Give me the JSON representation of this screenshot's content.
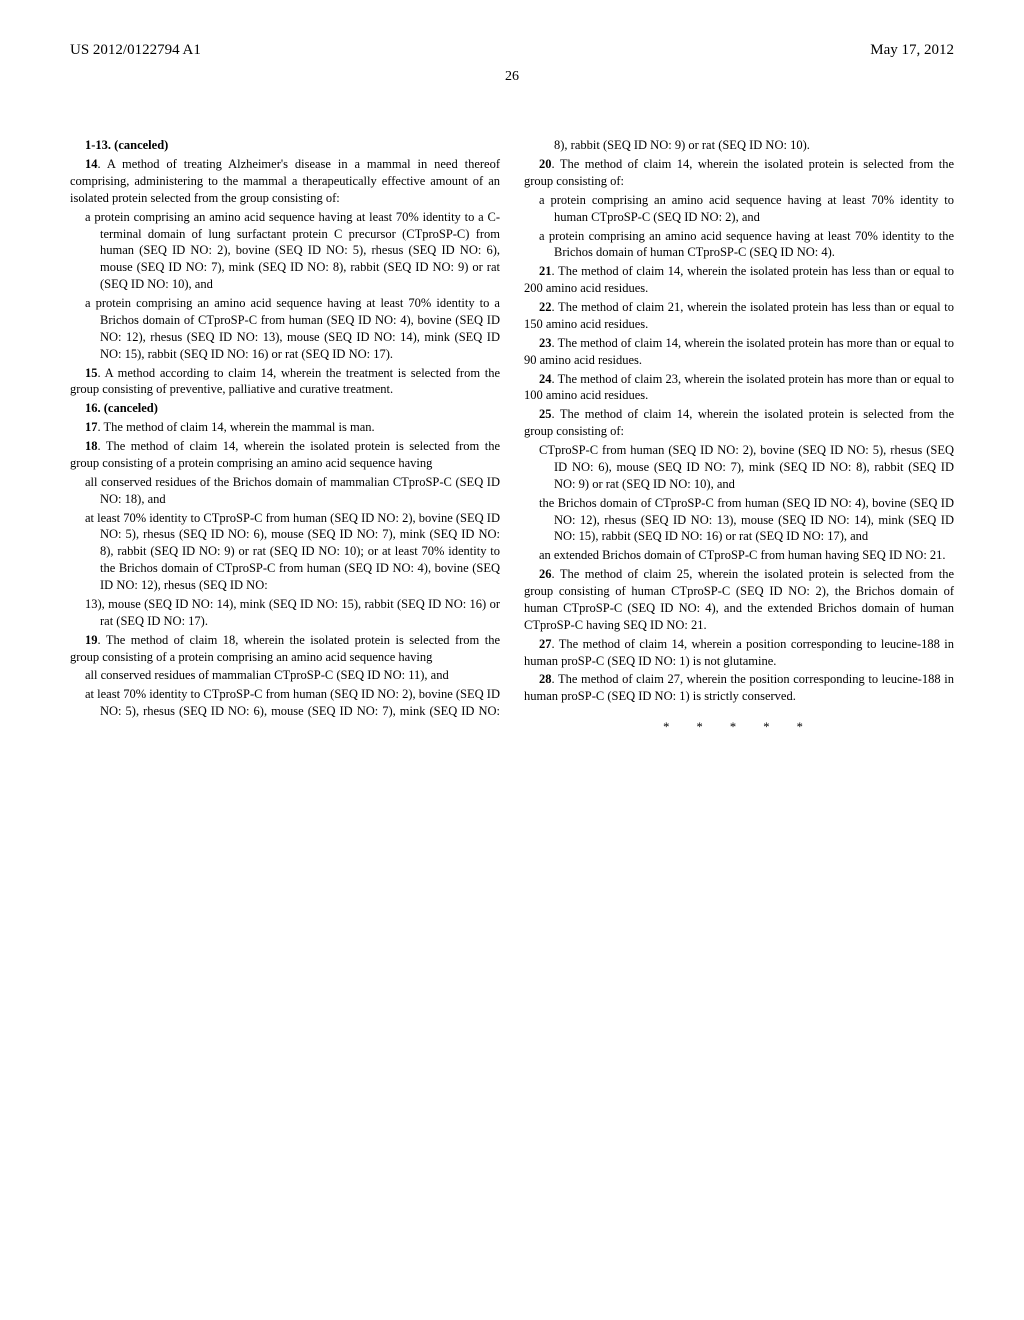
{
  "header": {
    "publication_number": "US 2012/0122794 A1",
    "publication_date": "May 17, 2012"
  },
  "page_number": "26",
  "claims": {
    "c1_13": "1-13. (canceled)",
    "c14": {
      "num": "14",
      "lead": ". A method of treating Alzheimer's disease in a mammal in need thereof comprising, administering to the mammal a therapeutically effective amount of an isolated protein selected from the group consisting of:",
      "sub1": "a protein comprising an amino acid sequence having at least 70% identity to a C-terminal domain of lung surfactant protein C precursor (CTproSP-C) from human (SEQ ID NO: 2), bovine (SEQ ID NO: 5), rhesus (SEQ ID NO: 6), mouse (SEQ ID NO: 7), mink (SEQ ID NO: 8), rabbit (SEQ ID NO: 9) or rat (SEQ ID NO: 10), and",
      "sub2": "a protein comprising an amino acid sequence having at least 70% identity to a Brichos domain of CTproSP-C from human (SEQ ID NO: 4), bovine (SEQ ID NO: 12), rhesus (SEQ ID NO: 13), mouse (SEQ ID NO: 14), mink (SEQ ID NO: 15), rabbit (SEQ ID NO: 16) or rat (SEQ ID NO: 17)."
    },
    "c15": {
      "num": "15",
      "text": ". A method according to claim 14, wherein the treatment is selected from the group consisting of preventive, palliative and curative treatment."
    },
    "c16": "16. (canceled)",
    "c17": {
      "num": "17",
      "text": ". The method of claim 14, wherein the mammal is man."
    },
    "c18": {
      "num": "18",
      "lead": ". The method of claim 14, wherein the isolated protein is selected from the group consisting of a protein comprising an amino acid sequence having",
      "sub1": "all conserved residues of the Brichos domain of mammalian CTproSP-C (SEQ ID NO: 18), and",
      "sub2": "at least 70% identity to CTproSP-C from human (SEQ ID NO: 2), bovine (SEQ ID NO: 5), rhesus (SEQ ID NO: 6), mouse (SEQ ID NO: 7), mink (SEQ ID NO: 8), rabbit (SEQ ID NO: 9) or rat (SEQ ID NO: 10); or at least 70% identity to the Brichos domain of CTproSP-C from human (SEQ ID NO: 4), bovine (SEQ ID NO: 12), rhesus (SEQ ID NO:",
      "sub3": "13), mouse (SEQ ID NO: 14), mink (SEQ ID NO: 15), rabbit (SEQ ID NO: 16) or rat (SEQ ID NO: 17)."
    },
    "c19": {
      "num": "19",
      "lead": ". The method of claim 18, wherein the isolated protein is selected from the group consisting of a protein comprising an amino acid sequence having",
      "sub1": "all conserved residues of mammalian CTproSP-C (SEQ ID NO: 11), and",
      "sub2": "at least 70% identity to CTproSP-C from human (SEQ ID NO: 2), bovine (SEQ ID NO: 5), rhesus (SEQ ID NO: 6), mouse (SEQ ID NO: 7), mink (SEQ ID NO: 8), rabbit (SEQ ID NO: 9) or rat (SEQ ID NO: 10)."
    },
    "c20": {
      "num": "20",
      "lead": ". The method of claim 14, wherein the isolated protein is selected from the group consisting of:",
      "sub1": "a protein comprising an amino acid sequence having at least 70% identity to human CTproSP-C (SEQ ID NO: 2), and",
      "sub2": "a protein comprising an amino acid sequence having at least 70% identity to the Brichos domain of human CTproSP-C (SEQ ID NO: 4)."
    },
    "c21": {
      "num": "21",
      "text": ". The method of claim 14, wherein the isolated protein has less than or equal to 200 amino acid residues."
    },
    "c22": {
      "num": "22",
      "text": ". The method of claim 21, wherein the isolated protein has less than or equal to 150 amino acid residues."
    },
    "c23": {
      "num": "23",
      "text": ". The method of claim 14, wherein the isolated protein has more than or equal to 90 amino acid residues."
    },
    "c24": {
      "num": "24",
      "text": ". The method of claim 23, wherein the isolated protein has more than or equal to 100 amino acid residues."
    },
    "c25": {
      "num": "25",
      "lead": ". The method of claim 14, wherein the isolated protein is selected from the group consisting of:",
      "sub1": "CTproSP-C from human (SEQ ID NO: 2), bovine (SEQ ID NO: 5), rhesus (SEQ ID NO: 6), mouse (SEQ ID NO: 7), mink (SEQ ID NO: 8), rabbit (SEQ ID NO: 9) or rat (SEQ ID NO: 10), and",
      "sub2": "the Brichos domain of CTproSP-C from human (SEQ ID NO: 4), bovine (SEQ ID NO: 12), rhesus (SEQ ID NO: 13), mouse (SEQ ID NO: 14), mink (SEQ ID NO: 15), rabbit (SEQ ID NO: 16) or rat (SEQ ID NO: 17), and",
      "sub3": "an extended Brichos domain of CTproSP-C from human having SEQ ID NO: 21."
    },
    "c26": {
      "num": "26",
      "text": ". The method of claim 25, wherein the isolated protein is selected from the group consisting of human CTproSP-C (SEQ ID NO: 2), the Brichos domain of human CTproSP-C (SEQ ID NO: 4), and the extended Brichos domain of human CTproSP-C having SEQ ID NO: 21."
    },
    "c27": {
      "num": "27",
      "text": ". The method of claim 14, wherein a position corresponding to leucine-188 in human proSP-C (SEQ ID NO: 1) is not glutamine."
    },
    "c28": {
      "num": "28",
      "text": ". The method of claim 27, wherein the position corresponding to leucine-188 in human proSP-C (SEQ ID NO: 1) is strictly conserved."
    }
  },
  "asterisks": "* * * * *"
}
